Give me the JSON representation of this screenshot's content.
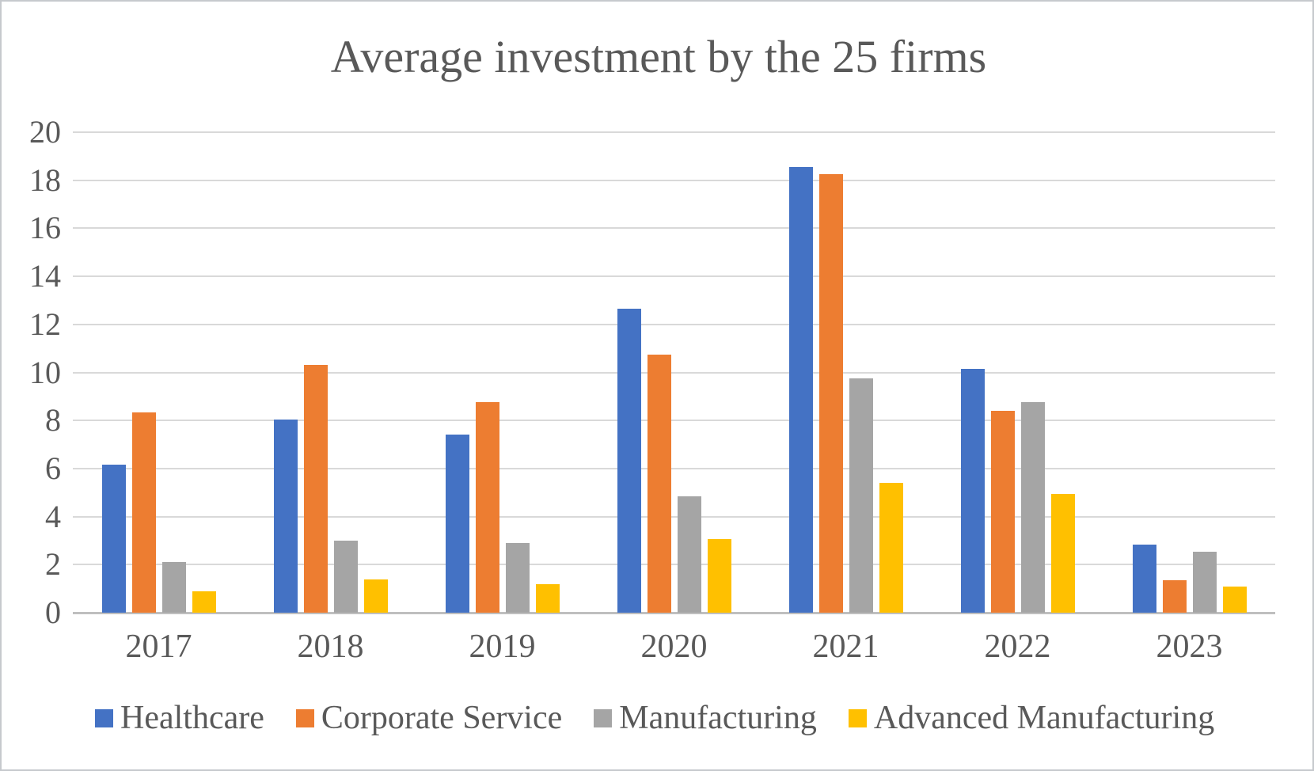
{
  "title": "Average investment by the 25 firms",
  "chart_data": {
    "type": "bar",
    "title": "Average investment by the 25 firms",
    "categories": [
      "2017",
      "2018",
      "2019",
      "2020",
      "2021",
      "2022",
      "2023"
    ],
    "series": [
      {
        "name": "Healthcare",
        "color": "#4472C4",
        "values": [
          6.15,
          8.05,
          7.4,
          12.65,
          18.55,
          10.15,
          2.85
        ]
      },
      {
        "name": "Corporate Service",
        "color": "#ED7D31",
        "values": [
          8.35,
          10.3,
          8.75,
          10.75,
          18.25,
          8.4,
          1.35
        ]
      },
      {
        "name": "Manufacturing",
        "color": "#A5A5A5",
        "values": [
          2.1,
          3.0,
          2.9,
          4.85,
          9.75,
          8.75,
          2.55
        ]
      },
      {
        "name": "Advanced Manufacturing",
        "color": "#FFC000",
        "values": [
          0.9,
          1.4,
          1.2,
          3.05,
          5.4,
          4.95,
          1.1
        ]
      }
    ],
    "xlabel": "",
    "ylabel": "",
    "ylim": [
      0,
      20
    ],
    "yticks": [
      0,
      2,
      4,
      6,
      8,
      10,
      12,
      14,
      16,
      18,
      20
    ],
    "grid": true,
    "legend_position": "bottom",
    "text_color": "#595959",
    "gridline_color": "#d9d9d9",
    "axis_line_color": "#bfbfbf"
  }
}
